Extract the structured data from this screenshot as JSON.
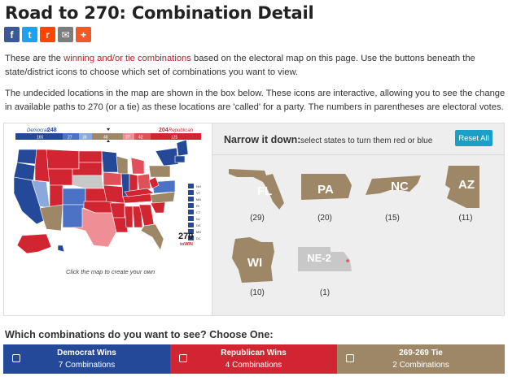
{
  "page": {
    "title": "Road to 270: Combination Detail"
  },
  "share": [
    {
      "name": "facebook-icon",
      "glyph": "f",
      "color": "#3b5998"
    },
    {
      "name": "twitter-icon",
      "glyph": "t",
      "color": "#1da1f2"
    },
    {
      "name": "reddit-icon",
      "glyph": "r",
      "color": "#ff4500"
    },
    {
      "name": "email-icon",
      "glyph": "✉",
      "color": "#7d7d7d"
    },
    {
      "name": "more-share-icon",
      "glyph": "+",
      "color": "#f05a28"
    }
  ],
  "intro": {
    "p1_before": "These are the ",
    "p1_link": "winning and/or tie combinations",
    "p1_after": " based on the electoral map on this page. Use the buttons beneath the state/district icons to choose which set of combinations you want to view.",
    "p2": "The undecided locations in the map are shown in the box below. These icons are interactive, allowing you to see the change in available paths to 270 (or a tie) as these locations are 'called' for a party. The numbers in parentheses are electoral votes."
  },
  "map": {
    "dem_label": "Democrat",
    "dem_total": "248",
    "dem_sub": "165",
    "rep_label": "Republican",
    "rep_total": "204",
    "rep_sub": "125",
    "bar_marks": [
      "27",
      "38",
      "48",
      "37",
      "42"
    ],
    "caption": "Click the map to create your own",
    "logo_number": "270",
    "logo_sub": "toWIN",
    "small_states": [
      "NH",
      "VT",
      "MA",
      "RI",
      "CT",
      "NJ",
      "DE",
      "MD",
      "DC"
    ]
  },
  "narrow": {
    "title": "Narrow it down:",
    "subtitle": "select states to turn them red or blue",
    "reset_label": "Reset All"
  },
  "states": [
    {
      "abbr": "FL",
      "ev": "(29)"
    },
    {
      "abbr": "PA",
      "ev": "(20)"
    },
    {
      "abbr": "NC",
      "ev": "(15)"
    },
    {
      "abbr": "AZ",
      "ev": "(11)"
    },
    {
      "abbr": "WI",
      "ev": "(10)"
    },
    {
      "abbr": "NE-2",
      "ev": "(1)"
    }
  ],
  "combos": {
    "heading": "Which combinations do you want to see? Choose One:",
    "items": [
      {
        "title": "Democrat Wins",
        "sub": "7 Combinations",
        "color": "#244999"
      },
      {
        "title": "Republican Wins",
        "sub": "4 Combinations",
        "color": "#d22532"
      },
      {
        "title": "269-269 Tie",
        "sub": "2 Combinations",
        "color": "#9e8767"
      }
    ]
  },
  "colors": {
    "tossup": "#9e8767",
    "nebraska": "#c8c8c8",
    "dem_safe": "#244999",
    "rep_safe": "#d22532"
  }
}
